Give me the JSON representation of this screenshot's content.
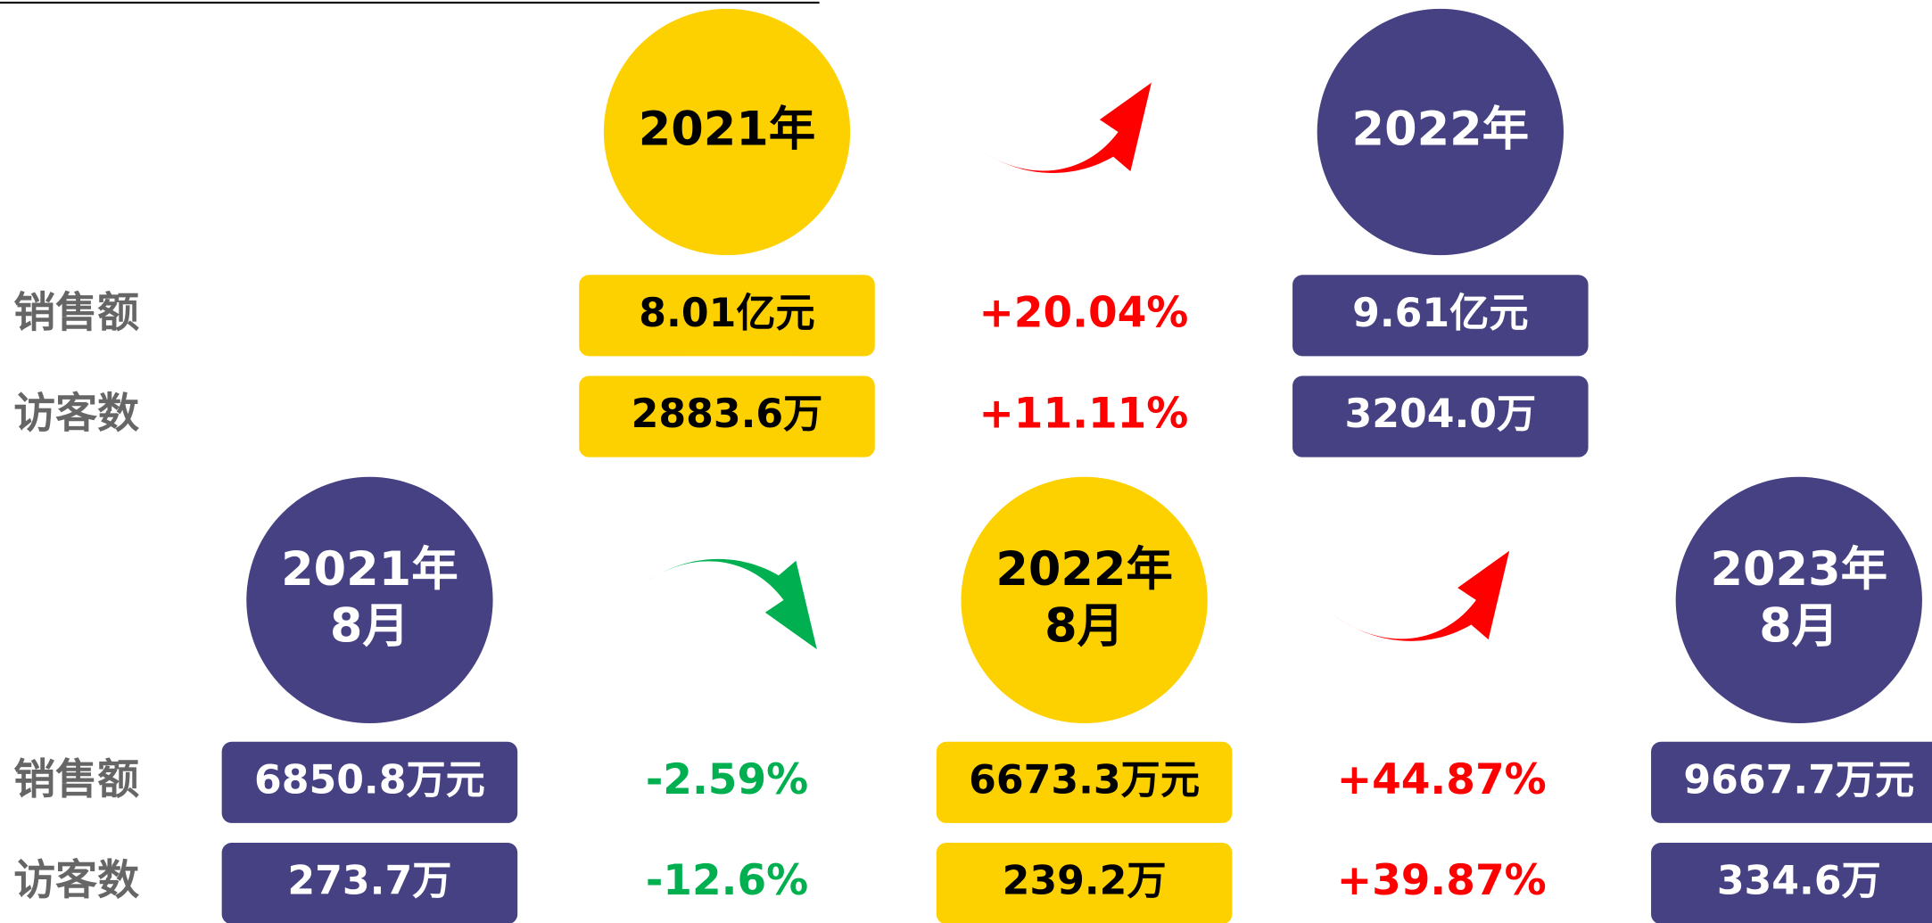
{
  "top": {
    "periods": [
      {
        "lines": [
          "2021年"
        ],
        "color": "#FDD000"
      },
      {
        "lines": [
          "2022年"
        ],
        "color": "#454183"
      }
    ],
    "metrics": [
      {
        "label": "销售额",
        "values": [
          "8.01亿元",
          "9.61亿元"
        ],
        "changes": [
          {
            "text": "+20.04%",
            "color": "#FF0000"
          }
        ]
      },
      {
        "label": "访客数",
        "values": [
          "2883.6万",
          "3204.0万"
        ],
        "changes": [
          {
            "text": "+11.11%",
            "color": "#FF0000"
          }
        ]
      }
    ]
  },
  "bottom": {
    "periods": [
      {
        "lines": [
          "2021年",
          "8月"
        ],
        "color": "#454183"
      },
      {
        "lines": [
          "2022年",
          "8月"
        ],
        "color": "#FDD000"
      },
      {
        "lines": [
          "2023年",
          "8月"
        ],
        "color": "#454183"
      }
    ],
    "metrics": [
      {
        "label": "销售额",
        "values": [
          "6850.8万元",
          "6673.3万元",
          "9667.7万元"
        ],
        "changes": [
          {
            "text": "-2.59%",
            "color": "#00B050"
          },
          {
            "text": "+44.87%",
            "color": "#FF0000"
          }
        ]
      },
      {
        "label": "访客数",
        "values": [
          "273.7万",
          "239.2万",
          "334.6万"
        ],
        "changes": [
          {
            "text": "-12.6%",
            "color": "#00B050"
          },
          {
            "text": "+39.87%",
            "color": "#FF0000"
          }
        ]
      }
    ]
  }
}
